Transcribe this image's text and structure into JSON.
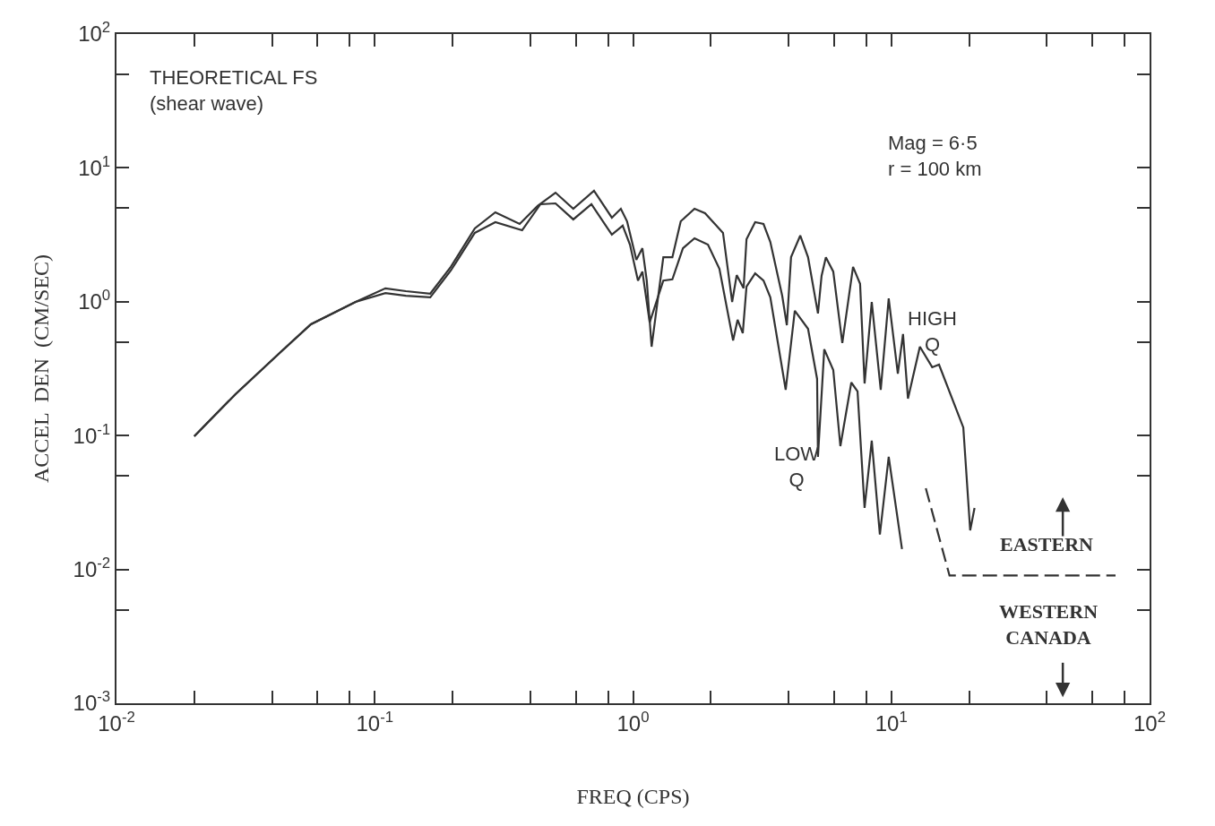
{
  "chart_data": {
    "type": "line",
    "xlabel": "FREQ (CPS)",
    "ylabel": "ACCEL  DEN  (CM/SEC)",
    "annotations": [
      "THEORETICAL FS\n(shear wave)",
      "Mag = 6·5\nr = 100 km",
      "EASTERN",
      "WESTERN\nCANADA"
    ],
    "log": "xy",
    "grid": false,
    "legend": false,
    "marker": "none",
    "line_style": "solid",
    "xlim": [
      0.01,
      100
    ],
    "ylim": [
      0.001,
      100
    ],
    "xticks": [
      {
        "value": 0.01,
        "label": "10$^{-2}$"
      },
      {
        "value": 0.02,
        "label": null
      },
      {
        "value": 0.04,
        "label": null
      },
      {
        "value": 0.06,
        "label": null
      },
      {
        "value": 0.08,
        "label": null
      },
      {
        "value": 0.1,
        "label": "10$^{-1}$"
      },
      {
        "value": 0.2,
        "label": null
      },
      {
        "value": 0.4,
        "label": null
      },
      {
        "value": 0.6,
        "label": null
      },
      {
        "value": 0.8,
        "label": null
      },
      {
        "value": 1,
        "label": "10$^{0}$"
      },
      {
        "value": 2,
        "label": null
      },
      {
        "value": 4,
        "label": null
      },
      {
        "value": 6,
        "label": null
      },
      {
        "value": 8,
        "label": null
      },
      {
        "value": 10,
        "label": "10$^{1}$"
      },
      {
        "value": 20,
        "label": null
      },
      {
        "value": 40,
        "label": null
      },
      {
        "value": 60,
        "label": null
      },
      {
        "value": 80,
        "label": null
      },
      {
        "value": 100,
        "label": "10$^{2}$"
      }
    ],
    "yticks": [
      {
        "value": 0.001,
        "label": "10$^{-3}$"
      },
      {
        "value": 0.005,
        "label": null
      },
      {
        "value": 0.01,
        "label": "10$^{-2}$"
      },
      {
        "value": 0.05,
        "label": null
      },
      {
        "value": 0.1,
        "label": "10$^{-1}$"
      },
      {
        "value": 0.5,
        "label": null
      },
      {
        "value": 1,
        "label": "10$^{0}$"
      },
      {
        "value": 5,
        "label": null
      },
      {
        "value": 10,
        "label": "10$^{1}$"
      },
      {
        "value": 50,
        "label": null
      },
      {
        "value": 100,
        "label": "10$^{2}$"
      }
    ],
    "series": [
      {
        "name": "HIGH Q",
        "color": "#333333",
        "x": [
          0.02,
          0.0289,
          0.0432,
          0.0566,
          0.0843,
          0.11,
          0.132,
          0.164,
          0.197,
          0.244,
          0.293,
          0.364,
          0.427,
          0.501,
          0.587,
          0.706,
          0.828,
          0.897,
          0.948,
          1.03,
          1.087,
          1.13,
          1.18,
          1.31,
          1.42,
          1.53,
          1.73,
          1.9,
          2.23,
          2.42,
          2.52,
          2.68,
          2.75,
          2.97,
          3.2,
          3.4,
          3.78,
          3.94,
          4.09,
          4.44,
          4.76,
          5.2,
          5.37,
          5.58,
          5.96,
          6.46,
          7.11,
          7.57,
          7.88,
          8.4,
          9.1,
          9.77,
          10.6,
          11.1,
          11.6,
          12.9,
          14.4,
          15.3,
          19.0,
          20.2,
          21.0
        ],
        "values": [
          0.0989,
          0.204,
          0.421,
          0.678,
          0.997,
          1.26,
          1.2,
          1.15,
          1.82,
          3.53,
          4.66,
          3.81,
          5.19,
          6.53,
          4.95,
          6.75,
          4.25,
          4.95,
          3.99,
          2.06,
          2.51,
          1.44,
          0.461,
          2.15,
          2.15,
          3.99,
          4.95,
          4.59,
          3.27,
          0.997,
          1.58,
          1.26,
          2.93,
          3.93,
          3.81,
          2.8,
          1.11,
          0.668,
          2.15,
          3.12,
          2.15,
          0.817,
          1.56,
          2.15,
          1.68,
          0.491,
          1.82,
          1.36,
          0.245,
          0.997,
          0.22,
          1.06,
          0.29,
          0.573,
          0.189,
          0.461,
          0.324,
          0.339,
          0.115,
          0.0196,
          0.0288
        ]
      },
      {
        "name": "LOW Q",
        "color": "#333333",
        "x": [
          0.02,
          0.0289,
          0.0432,
          0.0566,
          0.0843,
          0.11,
          0.132,
          0.164,
          0.197,
          0.244,
          0.293,
          0.372,
          0.438,
          0.501,
          0.587,
          0.69,
          0.828,
          0.912,
          0.973,
          1.045,
          1.087,
          1.16,
          1.31,
          1.42,
          1.56,
          1.73,
          1.95,
          2.16,
          2.44,
          2.54,
          2.66,
          2.75,
          2.97,
          3.2,
          3.4,
          3.9,
          4.23,
          4.76,
          5.16,
          5.2,
          5.5,
          5.96,
          6.35,
          7.0,
          7.4,
          7.88,
          8.4,
          9.03,
          9.77,
          11.0
        ],
        "values": [
          0.0989,
          0.204,
          0.421,
          0.678,
          0.997,
          1.16,
          1.11,
          1.08,
          1.71,
          3.27,
          3.93,
          3.42,
          5.35,
          5.43,
          4.12,
          5.35,
          3.17,
          3.7,
          2.67,
          1.44,
          1.68,
          0.7,
          1.44,
          1.47,
          2.51,
          2.98,
          2.67,
          1.76,
          0.514,
          0.733,
          0.582,
          1.3,
          1.63,
          1.44,
          1.08,
          0.22,
          0.855,
          0.628,
          0.265,
          0.0693,
          0.441,
          0.309,
          0.0834,
          0.249,
          0.214,
          0.0288,
          0.0915,
          0.0182,
          0.0693,
          0.0142
        ]
      },
      {
        "color": "#333333",
        "line_style": "dashed",
        "x": [
          13.6,
          16.8,
          73.8
        ],
        "values": [
          0.0404,
          0.009,
          0.009
        ]
      }
    ]
  }
}
